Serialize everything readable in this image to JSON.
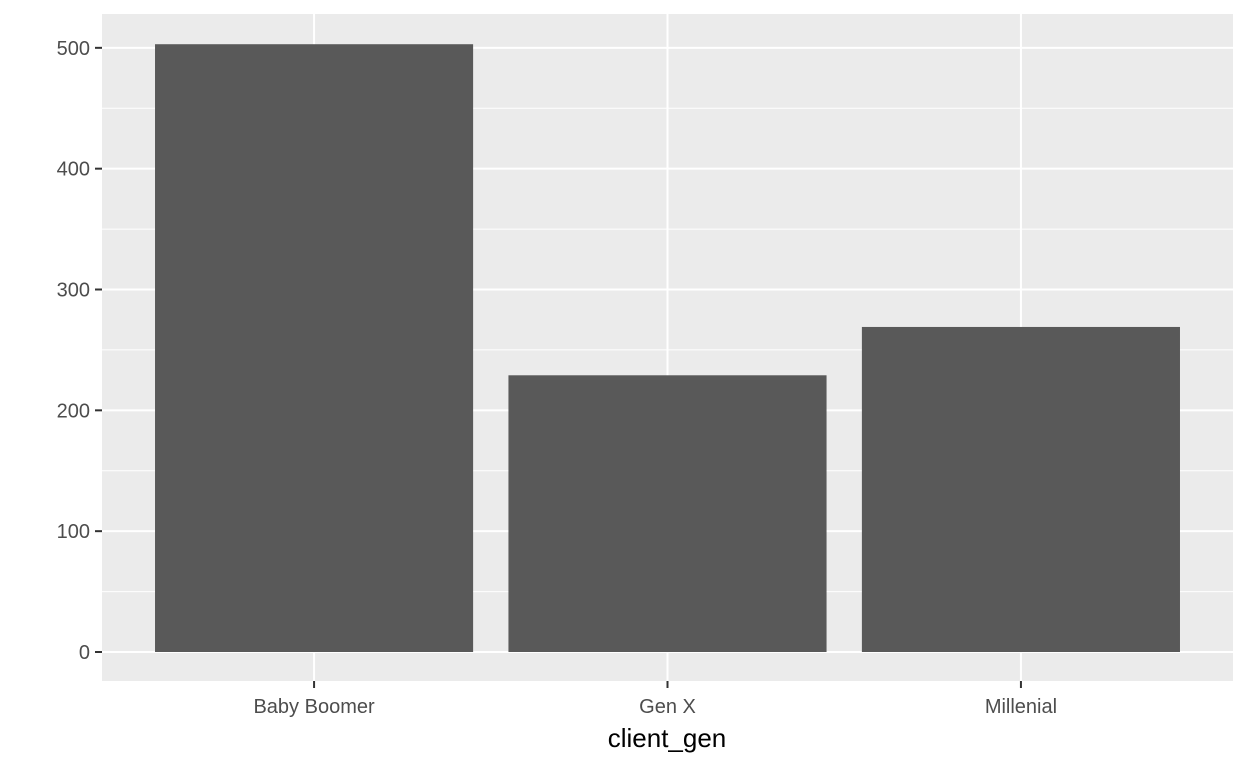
{
  "chart_data": {
    "type": "bar",
    "title": "",
    "xlabel": "client_gen",
    "ylabel": "",
    "categories": [
      "Baby Boomer",
      "Gen X",
      "Millenial"
    ],
    "values": [
      503,
      229,
      269
    ],
    "ylim": [
      -24,
      528
    ],
    "yticks": [
      0,
      100,
      200,
      300,
      400,
      500
    ],
    "grid": true,
    "legend": "none",
    "colors": {
      "bar": "#595959",
      "panel": "#ebebeb",
      "grid_major": "#ffffff",
      "tick_label": "#4d4d4d",
      "tick_mark": "#333333"
    }
  }
}
